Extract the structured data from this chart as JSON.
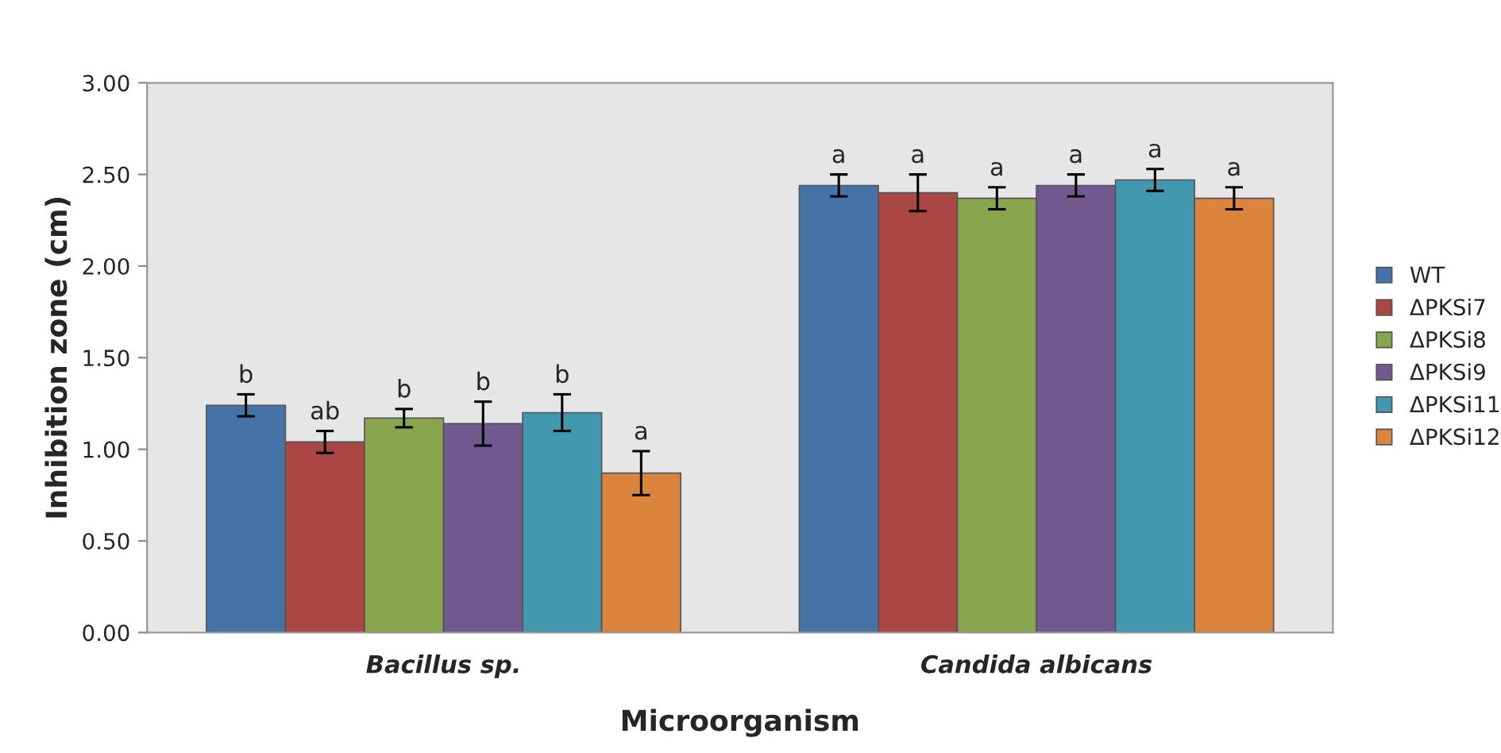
{
  "chart_data": {
    "type": "bar",
    "xlabel": "Microorganism",
    "ylabel": "Inhibition zone (cm)",
    "categories": [
      "Bacillus sp.",
      "Candida albicans"
    ],
    "series": [
      {
        "name": "WT",
        "color": "#4572a7",
        "values": [
          1.24,
          2.44
        ],
        "errors": [
          0.06,
          0.06
        ],
        "value_labels": [
          "b",
          "a"
        ]
      },
      {
        "name": "ΔPKSi7",
        "color": "#aa4643",
        "values": [
          1.04,
          2.4
        ],
        "errors": [
          0.06,
          0.1
        ],
        "value_labels": [
          "ab",
          "a"
        ]
      },
      {
        "name": "ΔPKSi8",
        "color": "#89a54e",
        "values": [
          1.17,
          2.37
        ],
        "errors": [
          0.05,
          0.06
        ],
        "value_labels": [
          "b",
          "a"
        ]
      },
      {
        "name": "ΔPKSi9",
        "color": "#71588f",
        "values": [
          1.14,
          2.44
        ],
        "errors": [
          0.12,
          0.06
        ],
        "value_labels": [
          "b",
          "a"
        ]
      },
      {
        "name": "ΔPKSi11",
        "color": "#4198af",
        "values": [
          1.2,
          2.47
        ],
        "errors": [
          0.1,
          0.06
        ],
        "value_labels": [
          "b",
          "a"
        ]
      },
      {
        "name": "ΔPKSi12",
        "color": "#db843d",
        "values": [
          0.87,
          2.37
        ],
        "errors": [
          0.12,
          0.06
        ],
        "value_labels": [
          "a",
          "a"
        ]
      }
    ],
    "ylim": [
      0,
      3
    ],
    "yticks": [
      {
        "value": 0,
        "label": "0.00"
      },
      {
        "value": 0.5,
        "label": "0.50"
      },
      {
        "value": 1,
        "label": "1.00"
      },
      {
        "value": 1.5,
        "label": "1.50"
      },
      {
        "value": 2,
        "label": "2.00"
      },
      {
        "value": 2.5,
        "label": "2.50"
      },
      {
        "value": 3,
        "label": "3.00"
      }
    ],
    "grid": false,
    "legend": "right"
  }
}
